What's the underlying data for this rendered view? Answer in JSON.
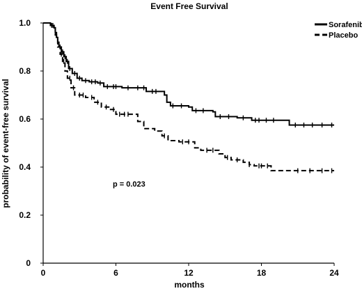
{
  "chart_data": {
    "type": "line",
    "title": "Event Free Survival",
    "xlabel": "months",
    "ylabel": "probability of event-free survival",
    "xlim": [
      0,
      24
    ],
    "ylim": [
      0,
      1.0
    ],
    "x_ticks": [
      "0",
      "6",
      "12",
      "18",
      "24"
    ],
    "x_tick_values": [
      0,
      6,
      12,
      18,
      24
    ],
    "y_ticks": [
      "0",
      "0.2",
      "0.4",
      "0.6",
      "0.8",
      "1.0"
    ],
    "y_tick_values": [
      0,
      0.2,
      0.4,
      0.6,
      0.8,
      1.0
    ],
    "grid": false,
    "legend_position": "top-right",
    "annotation": "p = 0.023",
    "series": [
      {
        "name": "Sorafenib",
        "style": "solid",
        "color": "#000000",
        "steps": [
          [
            0,
            1.0
          ],
          [
            0.6,
            0.99
          ],
          [
            0.9,
            0.98
          ],
          [
            1.0,
            0.96
          ],
          [
            1.1,
            0.94
          ],
          [
            1.2,
            0.92
          ],
          [
            1.3,
            0.9
          ],
          [
            1.5,
            0.88
          ],
          [
            1.7,
            0.86
          ],
          [
            1.9,
            0.84
          ],
          [
            2.1,
            0.81
          ],
          [
            2.4,
            0.79
          ],
          [
            2.8,
            0.77
          ],
          [
            3.2,
            0.76
          ],
          [
            3.8,
            0.755
          ],
          [
            4.5,
            0.75
          ],
          [
            5.0,
            0.735
          ],
          [
            6.5,
            0.73
          ],
          [
            8.5,
            0.715
          ],
          [
            10.0,
            0.7
          ],
          [
            10.2,
            0.67
          ],
          [
            10.5,
            0.655
          ],
          [
            12.0,
            0.65
          ],
          [
            12.3,
            0.635
          ],
          [
            14.0,
            0.63
          ],
          [
            14.2,
            0.61
          ],
          [
            16.0,
            0.605
          ],
          [
            17.2,
            0.595
          ],
          [
            20.3,
            0.575
          ],
          [
            24.0,
            0.575
          ]
        ],
        "censor_x": [
          0.7,
          0.8,
          1.0,
          1.2,
          1.4,
          1.6,
          1.8,
          2.0,
          2.2,
          2.6,
          3.0,
          3.5,
          4.0,
          4.3,
          4.7,
          5.3,
          5.8,
          6.0,
          7.0,
          7.8,
          8.3,
          9.0,
          9.3,
          10.7,
          11.4,
          12.6,
          13.2,
          14.6,
          15.3,
          16.5,
          17.5,
          17.8,
          18.4,
          19.0,
          20.8,
          21.5,
          22.2,
          23.0,
          23.8
        ]
      },
      {
        "name": "Placebo",
        "style": "dashed",
        "color": "#000000",
        "steps": [
          [
            0,
            1.0
          ],
          [
            0.6,
            0.99
          ],
          [
            0.9,
            0.98
          ],
          [
            1.0,
            0.95
          ],
          [
            1.1,
            0.93
          ],
          [
            1.2,
            0.9
          ],
          [
            1.4,
            0.87
          ],
          [
            1.6,
            0.84
          ],
          [
            1.8,
            0.8
          ],
          [
            2.0,
            0.77
          ],
          [
            2.3,
            0.73
          ],
          [
            2.6,
            0.7
          ],
          [
            3.5,
            0.69
          ],
          [
            4.2,
            0.67
          ],
          [
            4.8,
            0.65
          ],
          [
            5.5,
            0.64
          ],
          [
            6.0,
            0.62
          ],
          [
            7.8,
            0.59
          ],
          [
            8.3,
            0.56
          ],
          [
            9.2,
            0.55
          ],
          [
            9.8,
            0.53
          ],
          [
            10.3,
            0.51
          ],
          [
            11.2,
            0.505
          ],
          [
            12.5,
            0.48
          ],
          [
            13.0,
            0.47
          ],
          [
            14.5,
            0.455
          ],
          [
            15.0,
            0.44
          ],
          [
            15.5,
            0.43
          ],
          [
            16.5,
            0.42
          ],
          [
            17.0,
            0.41
          ],
          [
            17.4,
            0.405
          ],
          [
            18.8,
            0.385
          ],
          [
            24.0,
            0.385
          ]
        ],
        "censor_x": [
          1.5,
          1.7,
          2.2,
          2.5,
          3.0,
          3.3,
          4.0,
          4.5,
          5.2,
          5.8,
          6.3,
          6.7,
          7.0,
          10.0,
          11.5,
          12.0,
          13.5,
          14.0,
          15.2,
          16.0,
          17.0,
          17.8,
          18.0,
          18.5,
          21.0,
          22.0,
          23.0,
          23.8
        ]
      }
    ]
  }
}
